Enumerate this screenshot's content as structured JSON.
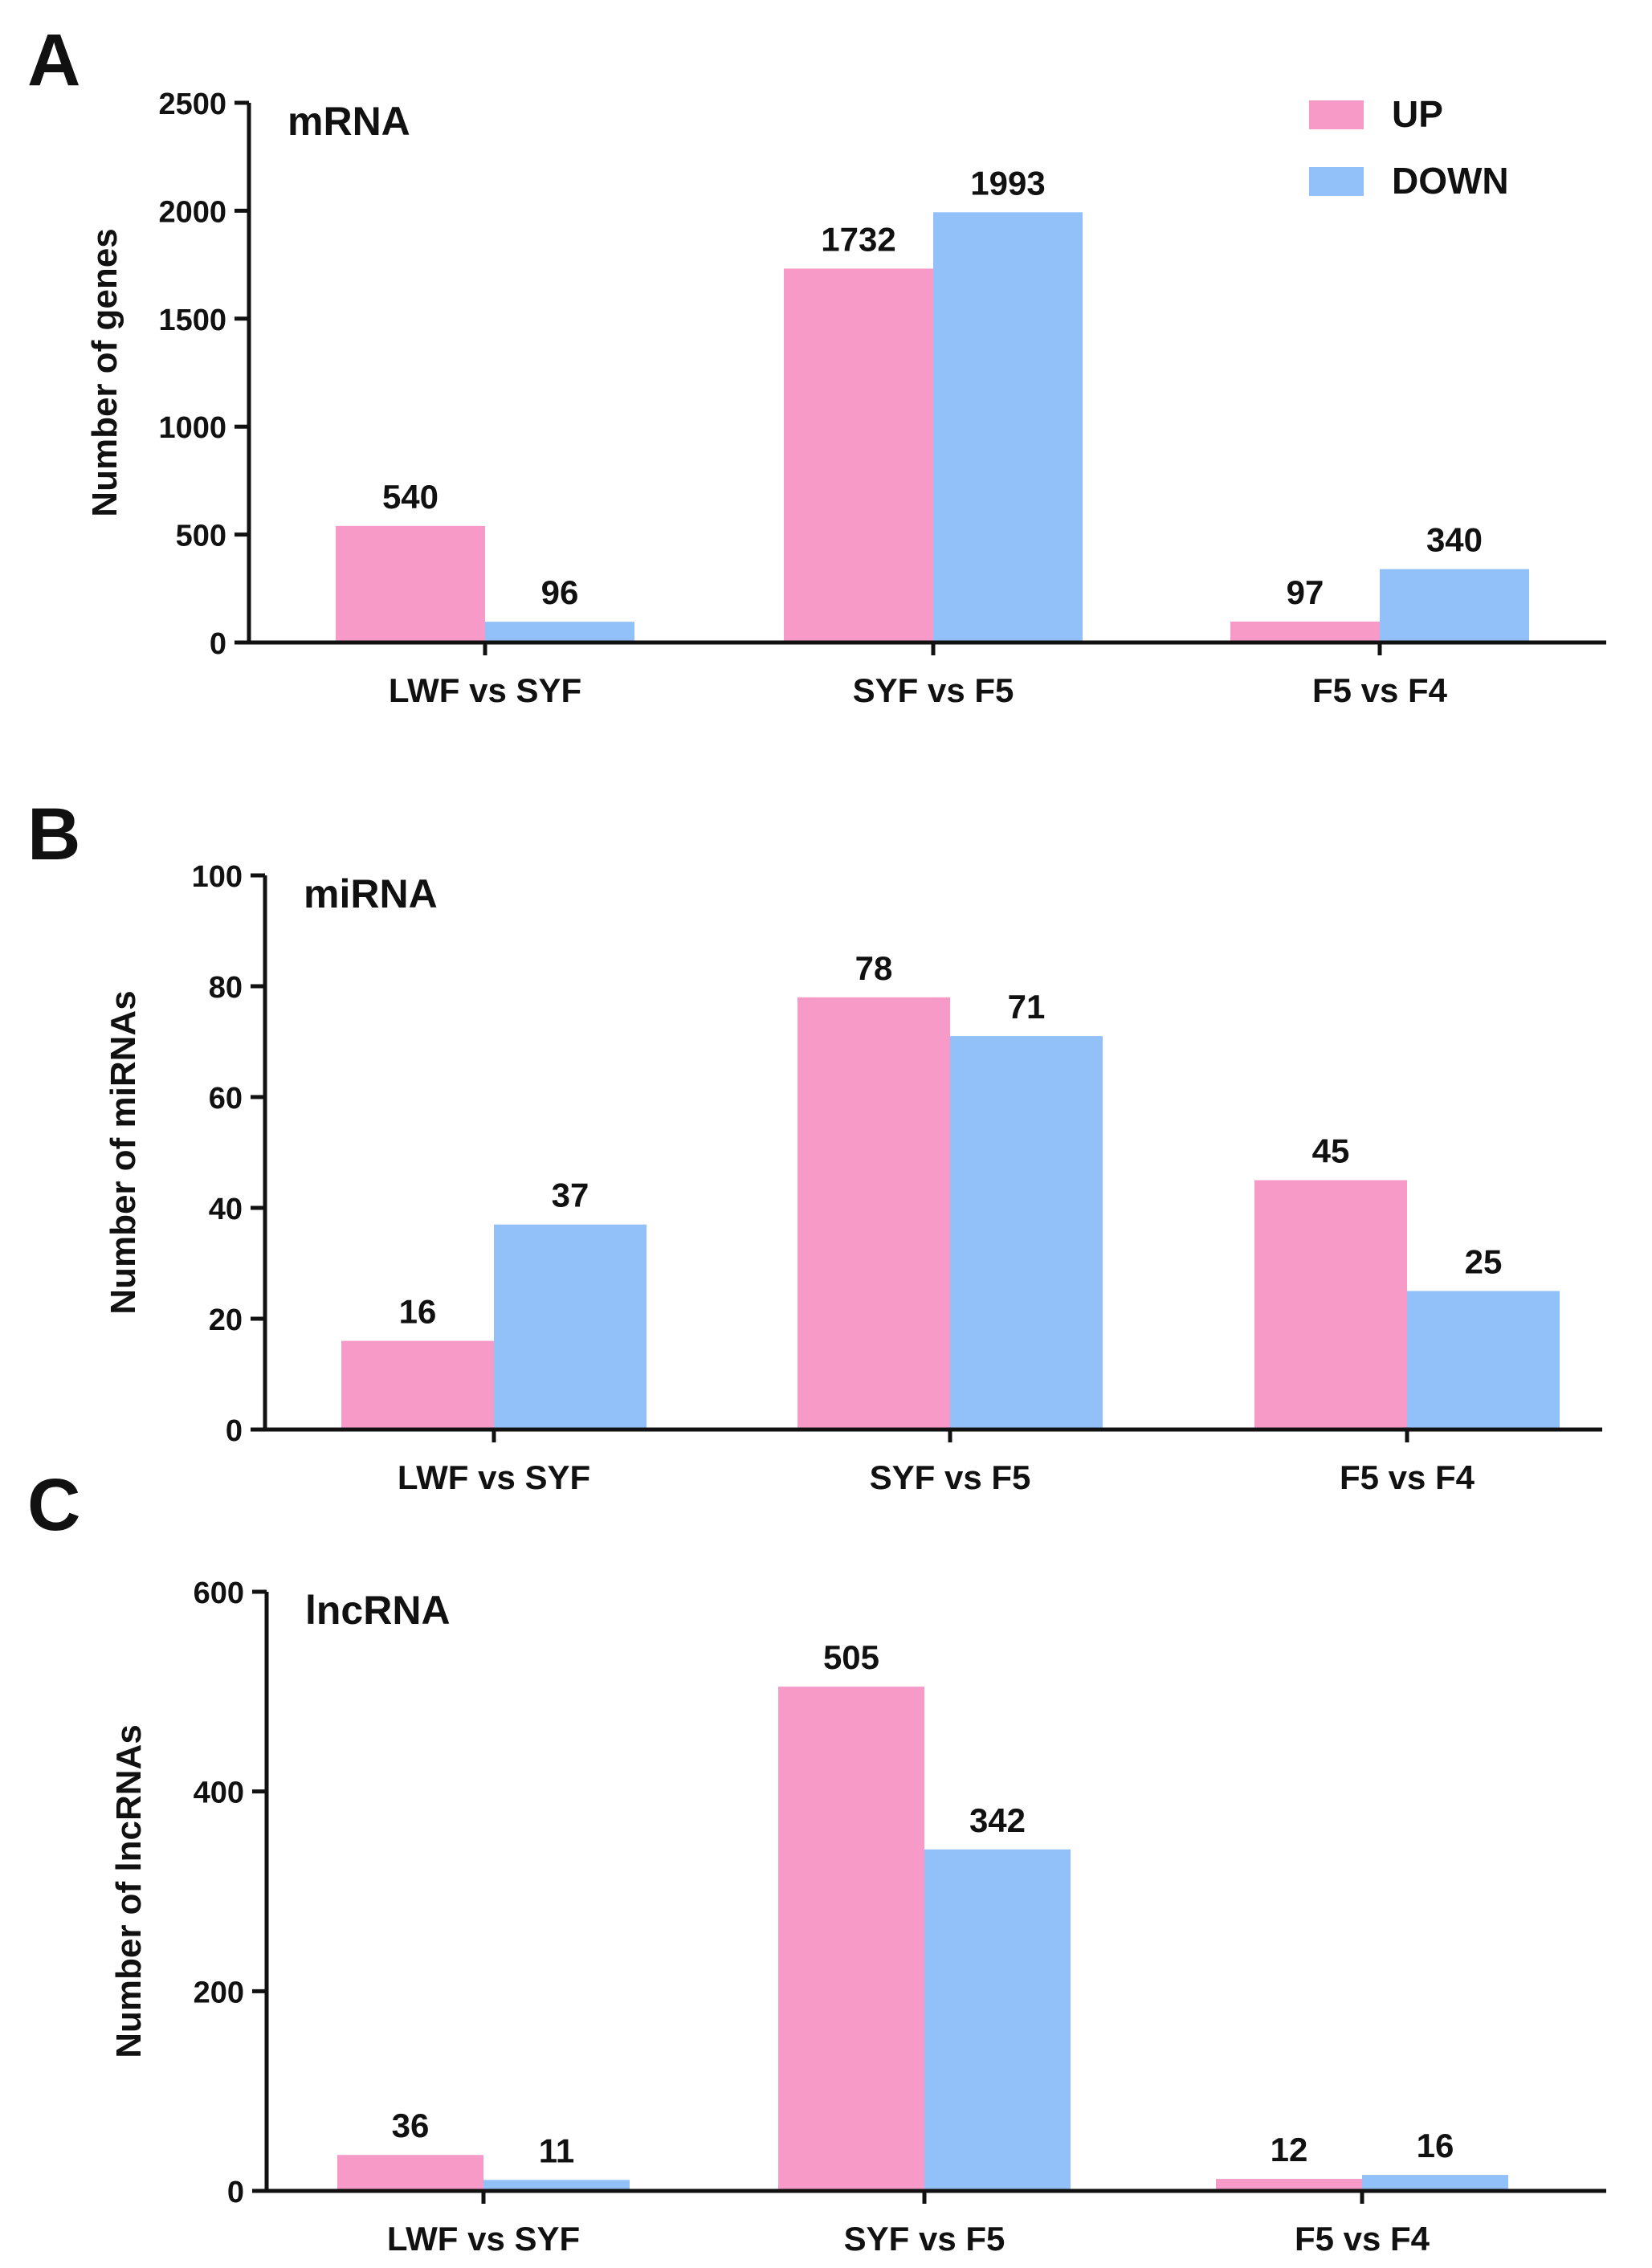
{
  "legend": {
    "up_label": "UP",
    "down_label": "DOWN",
    "up_color": "#f79ac7",
    "down_color": "#92c0f8"
  },
  "chart_data": [
    {
      "type": "bar",
      "panel": "A",
      "title": "mRNA",
      "ylabel": "Number of genes",
      "xlabel": "",
      "categories": [
        "LWF vs SYF",
        "SYF vs F5",
        "F5 vs F4"
      ],
      "ylim": [
        0,
        2500
      ],
      "yticks": [
        0,
        500,
        1000,
        1500,
        2000,
        2500
      ],
      "series": [
        {
          "name": "UP",
          "values": [
            540,
            1732,
            97
          ]
        },
        {
          "name": "DOWN",
          "values": [
            96,
            1993,
            340
          ]
        }
      ],
      "legend_position": "top-right"
    },
    {
      "type": "bar",
      "panel": "B",
      "title": "miRNA",
      "ylabel": "Number of miRNAs",
      "xlabel": "",
      "categories": [
        "LWF vs SYF",
        "SYF vs F5",
        "F5 vs F4"
      ],
      "ylim": [
        0,
        100
      ],
      "yticks": [
        0,
        20,
        40,
        60,
        80,
        100
      ],
      "series": [
        {
          "name": "UP",
          "values": [
            16,
            78,
            45
          ]
        },
        {
          "name": "DOWN",
          "values": [
            37,
            71,
            25
          ]
        }
      ]
    },
    {
      "type": "bar",
      "panel": "C",
      "title": "lncRNA",
      "ylabel": "Number of lncRNAs",
      "xlabel": "",
      "categories": [
        "LWF vs SYF",
        "SYF vs F5",
        "F5 vs F4"
      ],
      "ylim": [
        0,
        600
      ],
      "yticks": [
        0,
        200,
        400,
        600
      ],
      "series": [
        {
          "name": "UP",
          "values": [
            36,
            505,
            12
          ]
        },
        {
          "name": "DOWN",
          "values": [
            11,
            342,
            16
          ]
        }
      ]
    }
  ]
}
